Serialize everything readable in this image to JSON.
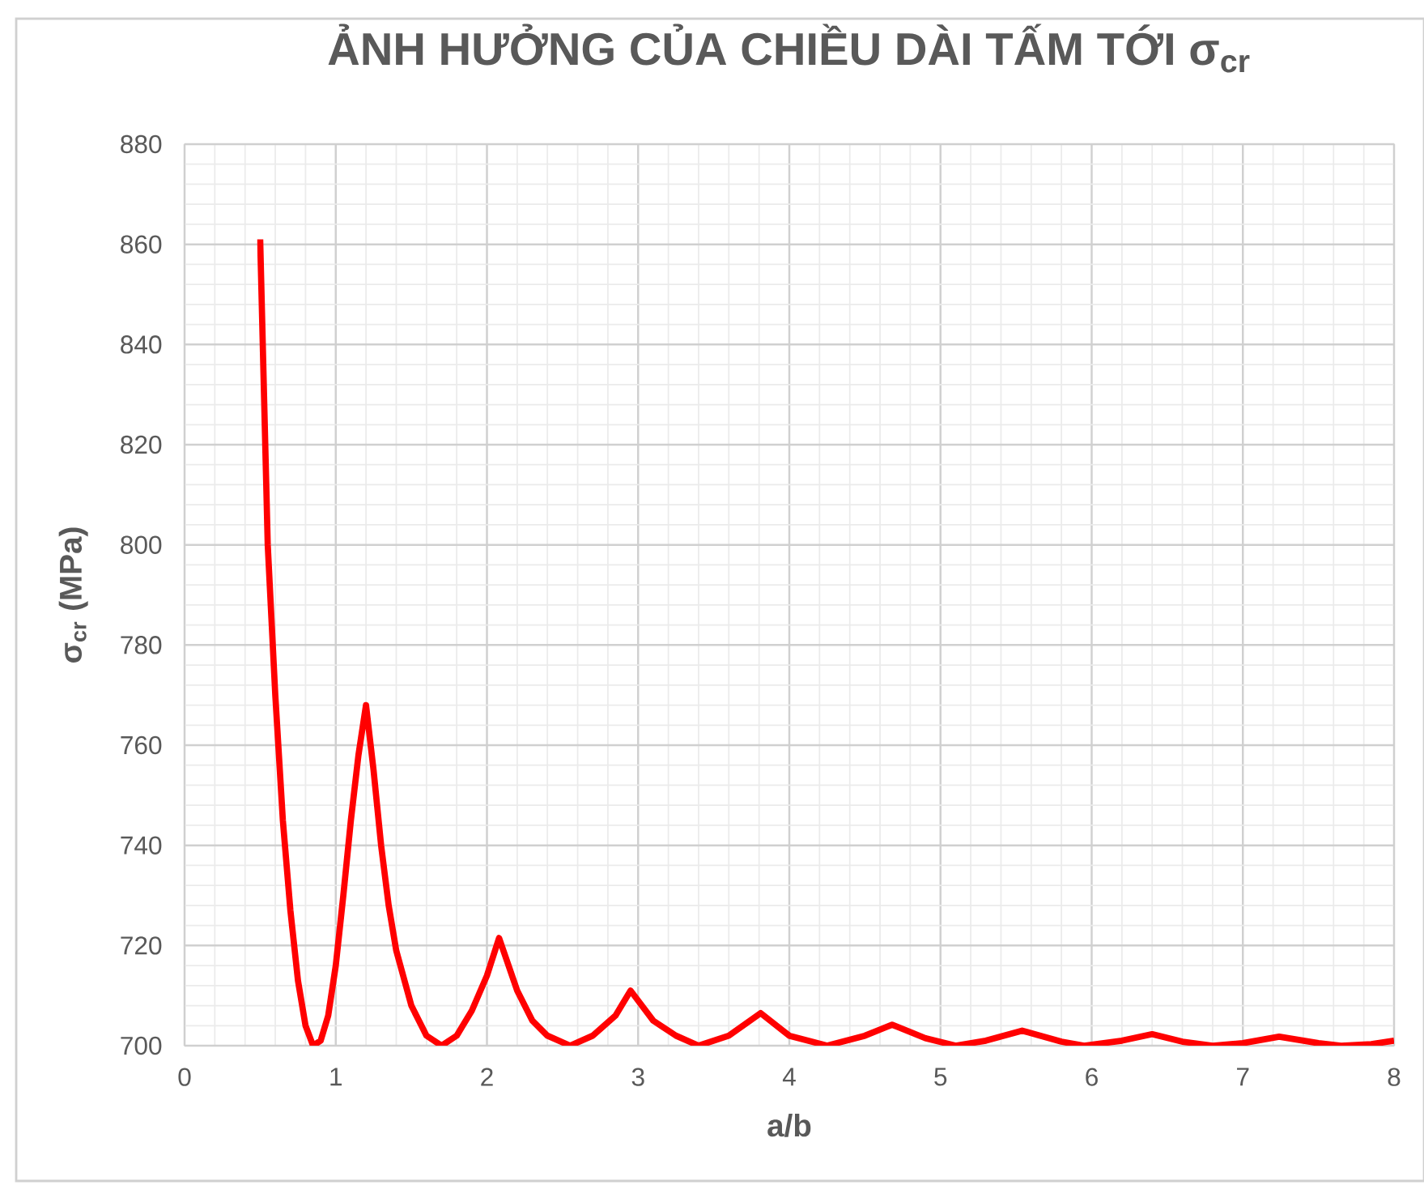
{
  "chart_data": {
    "type": "line",
    "title": "ẢNH HƯỞNG CỦA CHIỀU DÀI TẤM TỚI σ$_{cr}$",
    "xlabel": "a/b",
    "ylabel": "σ$_{cr}$ (MPa)",
    "xlim": [
      0,
      8
    ],
    "ylim": [
      700,
      880
    ],
    "xticks": [
      0,
      1,
      2,
      3,
      4,
      5,
      6,
      7,
      8
    ],
    "yticks": [
      700,
      720,
      740,
      760,
      780,
      800,
      820,
      840,
      860,
      880
    ],
    "grid": true,
    "marker": "none",
    "line_style": "solid",
    "series": [
      {
        "color": "#ff0000",
        "x": [
          0.5,
          0.55,
          0.6,
          0.65,
          0.7,
          0.75,
          0.8,
          0.85,
          0.9,
          0.95,
          1.0,
          1.05,
          1.1,
          1.15,
          1.2,
          1.25,
          1.3,
          1.35,
          1.4,
          1.5,
          1.6,
          1.7,
          1.8,
          1.9,
          2.0,
          2.08,
          2.2,
          2.3,
          2.4,
          2.55,
          2.7,
          2.85,
          2.95,
          3.1,
          3.25,
          3.4,
          3.6,
          3.81,
          4.0,
          4.25,
          4.5,
          4.68,
          4.9,
          5.1,
          5.3,
          5.54,
          5.8,
          5.95,
          6.2,
          6.4,
          6.6,
          6.8,
          7.0,
          7.24,
          7.5,
          7.65,
          7.85,
          8.0
        ],
        "values": [
          861,
          800,
          770,
          745,
          727,
          713,
          704,
          700,
          701,
          706,
          716,
          730,
          745,
          758,
          768,
          755,
          740,
          728,
          719,
          708,
          702,
          700,
          702,
          707,
          714,
          721.5,
          711,
          705,
          702,
          700,
          702,
          706,
          711,
          705,
          702,
          700,
          702,
          706.5,
          702,
          700,
          702,
          704.2,
          701.5,
          700,
          701,
          703,
          700.8,
          700,
          701,
          702.3,
          700.8,
          700,
          700.5,
          701.8,
          700.5,
          700,
          700.3,
          701
        ]
      }
    ]
  }
}
